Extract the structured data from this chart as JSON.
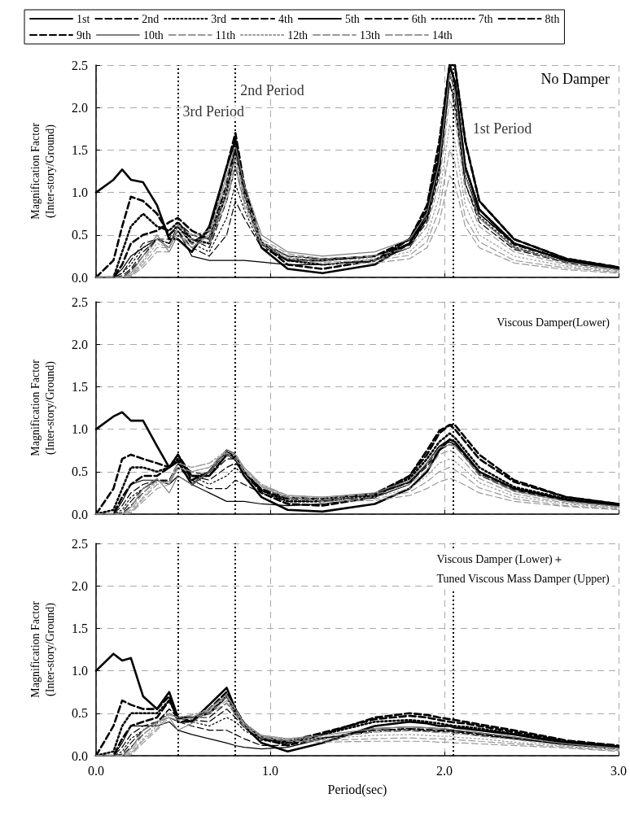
{
  "chart_data": [
    {
      "type": "line",
      "ylabel": "Magnification Factor\n(Inter-story/Ground)",
      "annotations": [
        "No Damper"
      ],
      "legend": "top",
      "grid": true,
      "tick_labels": "y",
      "xlim": [
        0,
        3
      ],
      "xticks": [
        0,
        1,
        2,
        3
      ],
      "ylim": [
        0,
        2.5
      ],
      "yticks": [
        {
          "value": 0,
          "label": "0.0"
        },
        {
          "value": 0.5,
          "label": "0.5"
        },
        {
          "value": 1,
          "label": "1.0"
        },
        {
          "value": 1.5,
          "label": "1.5"
        },
        {
          "value": 2,
          "label": "2.0"
        },
        {
          "value": 2.5,
          "label": "2.5"
        }
      ],
      "ref_lines": [
        {
          "axis": "x",
          "value": 0.47,
          "label": "3rd Period",
          "color": "#000000",
          "line_style": "dotted"
        },
        {
          "axis": "x",
          "value": 0.8,
          "label": "2nd Period",
          "color": "#000000",
          "line_style": "dotted"
        },
        {
          "axis": "x",
          "value": 2.05,
          "label": "1st Period",
          "color": "#000000",
          "line_style": "dotted"
        }
      ],
      "x": [
        0,
        0.1,
        0.15,
        0.2,
        0.27,
        0.35,
        0.42,
        0.47,
        0.55,
        0.65,
        0.75,
        0.8,
        0.85,
        0.95,
        1.1,
        1.3,
        1.6,
        1.8,
        1.9,
        1.97,
        2.03,
        2.06,
        2.12,
        2.2,
        2.4,
        2.7,
        3.0
      ],
      "series": [
        {
          "name": "1st",
          "color": "#000000",
          "line_style": "solid",
          "values": [
            1.0,
            1.15,
            1.27,
            1.15,
            1.12,
            0.85,
            0.45,
            0.45,
            0.3,
            0.6,
            1.3,
            1.62,
            1.0,
            0.35,
            0.1,
            0.05,
            0.15,
            0.4,
            0.75,
            1.4,
            2.5,
            2.3,
            1.3,
            0.8,
            0.4,
            0.2,
            0.1
          ]
        },
        {
          "name": "2nd",
          "color": "#000000",
          "line_style": "dashed",
          "values": [
            0,
            0.2,
            0.6,
            0.95,
            0.9,
            0.75,
            0.5,
            0.6,
            0.4,
            0.55,
            1.3,
            1.7,
            1.1,
            0.4,
            0.15,
            0.1,
            0.2,
            0.45,
            0.8,
            1.5,
            2.5,
            2.5,
            1.6,
            0.9,
            0.45,
            0.22,
            0.12
          ]
        },
        {
          "name": "3rd",
          "color": "#000000",
          "line_style": "dotted",
          "values": [
            0,
            0,
            0.3,
            0.6,
            0.75,
            0.6,
            0.55,
            0.65,
            0.45,
            0.4,
            1.0,
            1.5,
            1.0,
            0.4,
            0.2,
            0.15,
            0.2,
            0.4,
            0.75,
            1.4,
            2.5,
            2.3,
            1.3,
            0.8,
            0.4,
            0.2,
            0.1
          ]
        },
        {
          "name": "4th",
          "color": "#000000",
          "line_style": "dashed",
          "values": [
            0,
            0,
            0.15,
            0.4,
            0.5,
            0.55,
            0.65,
            0.7,
            0.55,
            0.45,
            1.1,
            1.55,
            1.0,
            0.4,
            0.2,
            0.2,
            0.25,
            0.45,
            0.85,
            1.6,
            2.5,
            2.5,
            1.6,
            0.9,
            0.45,
            0.22,
            0.12
          ]
        },
        {
          "name": "5th",
          "color": "#000000",
          "line_style": "solid",
          "values": [
            0,
            0,
            0.1,
            0.25,
            0.35,
            0.45,
            0.35,
            0.55,
            0.25,
            0.2,
            0.2,
            0.2,
            0.2,
            0.18,
            0.15,
            0.15,
            0.2,
            0.35,
            0.7,
            1.3,
            2.4,
            2.2,
            1.2,
            0.75,
            0.4,
            0.2,
            0.1
          ]
        },
        {
          "name": "6th",
          "color": "#000000",
          "line_style": "dashed",
          "values": [
            0,
            0,
            0.05,
            0.2,
            0.4,
            0.45,
            0.4,
            0.55,
            0.35,
            0.25,
            0.5,
            0.9,
            0.7,
            0.35,
            0.2,
            0.2,
            0.25,
            0.4,
            0.7,
            1.3,
            2.4,
            2.2,
            1.2,
            0.75,
            0.38,
            0.2,
            0.1
          ]
        },
        {
          "name": "7th",
          "color": "#000000",
          "line_style": "dotted",
          "values": [
            0,
            0,
            0.05,
            0.15,
            0.35,
            0.45,
            0.4,
            0.6,
            0.4,
            0.3,
            0.7,
            1.1,
            0.8,
            0.35,
            0.22,
            0.2,
            0.25,
            0.4,
            0.7,
            1.3,
            2.4,
            2.2,
            1.2,
            0.72,
            0.36,
            0.18,
            0.1
          ]
        },
        {
          "name": "8th",
          "color": "#000000",
          "line_style": "dashed",
          "values": [
            0,
            0,
            0.02,
            0.1,
            0.3,
            0.45,
            0.4,
            0.6,
            0.45,
            0.35,
            0.9,
            1.3,
            0.9,
            0.4,
            0.25,
            0.22,
            0.25,
            0.4,
            0.68,
            1.25,
            2.3,
            2.1,
            1.1,
            0.7,
            0.35,
            0.18,
            0.1
          ]
        },
        {
          "name": "9th",
          "color": "#000000",
          "line_style": "dashed",
          "values": [
            0,
            0,
            0,
            0.08,
            0.25,
            0.45,
            0.45,
            0.65,
            0.5,
            0.45,
            1.0,
            1.45,
            1.0,
            0.42,
            0.25,
            0.22,
            0.25,
            0.38,
            0.65,
            1.2,
            2.3,
            2.0,
            1.1,
            0.65,
            0.33,
            0.17,
            0.09
          ]
        },
        {
          "name": "10th",
          "color": "#808080",
          "line_style": "solid",
          "values": [
            0,
            0,
            0,
            0.05,
            0.25,
            0.5,
            0.3,
            0.5,
            0.35,
            0.5,
            1.2,
            1.55,
            1.1,
            0.5,
            0.3,
            0.25,
            0.3,
            0.45,
            0.75,
            1.35,
            2.4,
            2.2,
            1.2,
            0.7,
            0.35,
            0.18,
            0.09
          ]
        },
        {
          "name": "11th",
          "color": "#999999",
          "line_style": "dashed",
          "values": [
            0,
            0,
            0,
            0.03,
            0.2,
            0.45,
            0.35,
            0.6,
            0.5,
            0.55,
            1.1,
            1.45,
            1.0,
            0.45,
            0.28,
            0.22,
            0.25,
            0.35,
            0.6,
            1.1,
            2.1,
            1.9,
            1.0,
            0.6,
            0.3,
            0.15,
            0.08
          ]
        },
        {
          "name": "12th",
          "color": "#999999",
          "line_style": "dotted",
          "values": [
            0,
            0,
            0,
            0.02,
            0.18,
            0.4,
            0.35,
            0.6,
            0.5,
            0.5,
            1.0,
            1.4,
            0.95,
            0.42,
            0.26,
            0.2,
            0.22,
            0.3,
            0.5,
            0.95,
            1.8,
            1.6,
            0.85,
            0.5,
            0.25,
            0.13,
            0.07
          ]
        },
        {
          "name": "13th",
          "color": "#999999",
          "line_style": "dashed",
          "values": [
            0,
            0,
            0,
            0.02,
            0.15,
            0.35,
            0.35,
            0.55,
            0.45,
            0.45,
            0.95,
            1.35,
            0.9,
            0.4,
            0.24,
            0.18,
            0.2,
            0.26,
            0.42,
            0.8,
            1.5,
            1.35,
            0.7,
            0.42,
            0.2,
            0.11,
            0.06
          ]
        },
        {
          "name": "14th",
          "color": "#999999",
          "line_style": "dashed",
          "values": [
            0,
            0,
            0,
            0.01,
            0.12,
            0.3,
            0.3,
            0.5,
            0.4,
            0.4,
            0.9,
            1.3,
            0.85,
            0.38,
            0.22,
            0.16,
            0.17,
            0.22,
            0.35,
            0.65,
            1.2,
            1.1,
            0.6,
            0.35,
            0.17,
            0.09,
            0.05
          ]
        }
      ]
    },
    {
      "type": "line",
      "ylabel": "Magnification Factor\n(Inter-story/Ground)",
      "annotations": [
        "Viscous Damper(Lower)"
      ],
      "grid": true,
      "tick_labels": "y",
      "xlim": [
        0,
        3
      ],
      "xticks": [
        0,
        1,
        2,
        3
      ],
      "ylim": [
        0,
        2.5
      ],
      "yticks": [
        {
          "value": 0,
          "label": "0.0"
        },
        {
          "value": 0.5,
          "label": "0.5"
        },
        {
          "value": 1,
          "label": "1.0"
        },
        {
          "value": 1.5,
          "label": "1.5"
        },
        {
          "value": 2,
          "label": "2.0"
        },
        {
          "value": 2.5,
          "label": "2.5"
        }
      ],
      "ref_lines": [
        {
          "axis": "x",
          "value": 0.47,
          "color": "#000000",
          "line_style": "dotted"
        },
        {
          "axis": "x",
          "value": 0.8,
          "color": "#000000",
          "line_style": "dotted"
        },
        {
          "axis": "x",
          "value": 2.05,
          "color": "#000000",
          "line_style": "dotted"
        }
      ],
      "x": [
        0,
        0.1,
        0.15,
        0.2,
        0.27,
        0.35,
        0.42,
        0.47,
        0.55,
        0.65,
        0.75,
        0.8,
        0.85,
        0.95,
        1.1,
        1.3,
        1.6,
        1.8,
        1.9,
        1.97,
        2.03,
        2.06,
        2.12,
        2.2,
        2.4,
        2.7,
        3.0
      ],
      "series": [
        {
          "color": "#000000",
          "line_style": "solid",
          "values": [
            1.0,
            1.15,
            1.2,
            1.1,
            1.1,
            0.8,
            0.55,
            0.62,
            0.35,
            0.5,
            0.75,
            0.65,
            0.45,
            0.2,
            0.05,
            0.03,
            0.12,
            0.3,
            0.5,
            0.75,
            0.88,
            0.85,
            0.7,
            0.5,
            0.3,
            0.17,
            0.1
          ]
        },
        {
          "color": "#000000",
          "line_style": "dashed",
          "values": [
            0,
            0.3,
            0.65,
            0.7,
            0.65,
            0.6,
            0.55,
            0.7,
            0.4,
            0.5,
            0.75,
            0.7,
            0.5,
            0.25,
            0.12,
            0.1,
            0.2,
            0.45,
            0.75,
            0.98,
            1.05,
            1.05,
            0.9,
            0.7,
            0.4,
            0.2,
            0.12
          ]
        },
        {
          "color": "#000000",
          "line_style": "dotted",
          "values": [
            0,
            0.05,
            0.3,
            0.55,
            0.55,
            0.5,
            0.55,
            0.65,
            0.45,
            0.45,
            0.7,
            0.65,
            0.5,
            0.28,
            0.15,
            0.15,
            0.22,
            0.42,
            0.65,
            0.85,
            0.95,
            0.9,
            0.75,
            0.55,
            0.32,
            0.18,
            0.1
          ]
        },
        {
          "color": "#000000",
          "line_style": "dashed",
          "values": [
            0,
            0,
            0.2,
            0.35,
            0.45,
            0.45,
            0.55,
            0.7,
            0.45,
            0.45,
            0.7,
            0.65,
            0.5,
            0.28,
            0.18,
            0.18,
            0.24,
            0.45,
            0.7,
            0.95,
            1.05,
            1.0,
            0.85,
            0.65,
            0.38,
            0.2,
            0.12
          ]
        },
        {
          "color": "#000000",
          "line_style": "solid",
          "values": [
            0,
            0,
            0.15,
            0.35,
            0.4,
            0.4,
            0.35,
            0.45,
            0.35,
            0.25,
            0.15,
            0.15,
            0.15,
            0.12,
            0.1,
            0.12,
            0.2,
            0.35,
            0.6,
            0.8,
            0.85,
            0.82,
            0.7,
            0.5,
            0.3,
            0.17,
            0.1
          ]
        },
        {
          "color": "#000000",
          "line_style": "dashed",
          "values": [
            0,
            0,
            0.1,
            0.25,
            0.35,
            0.4,
            0.4,
            0.55,
            0.4,
            0.3,
            0.3,
            0.4,
            0.35,
            0.25,
            0.15,
            0.15,
            0.22,
            0.38,
            0.6,
            0.8,
            0.88,
            0.85,
            0.7,
            0.5,
            0.3,
            0.17,
            0.1
          ]
        },
        {
          "color": "#000000",
          "line_style": "dotted",
          "values": [
            0,
            0,
            0.05,
            0.2,
            0.3,
            0.4,
            0.35,
            0.55,
            0.45,
            0.35,
            0.45,
            0.55,
            0.45,
            0.27,
            0.18,
            0.17,
            0.23,
            0.38,
            0.6,
            0.8,
            0.88,
            0.85,
            0.7,
            0.5,
            0.3,
            0.17,
            0.1
          ]
        },
        {
          "color": "#000000",
          "line_style": "dashed",
          "values": [
            0,
            0,
            0.02,
            0.15,
            0.3,
            0.4,
            0.38,
            0.6,
            0.45,
            0.4,
            0.55,
            0.6,
            0.5,
            0.3,
            0.2,
            0.18,
            0.23,
            0.38,
            0.58,
            0.78,
            0.85,
            0.82,
            0.68,
            0.48,
            0.28,
            0.16,
            0.09
          ]
        },
        {
          "color": "#000000",
          "line_style": "dashed",
          "values": [
            0,
            0,
            0,
            0.1,
            0.25,
            0.4,
            0.4,
            0.6,
            0.5,
            0.45,
            0.65,
            0.65,
            0.5,
            0.3,
            0.2,
            0.18,
            0.23,
            0.37,
            0.56,
            0.75,
            0.82,
            0.8,
            0.66,
            0.46,
            0.27,
            0.15,
            0.09
          ]
        },
        {
          "color": "#808080",
          "line_style": "solid",
          "values": [
            0,
            0,
            0,
            0.08,
            0.3,
            0.42,
            0.25,
            0.45,
            0.35,
            0.5,
            0.75,
            0.7,
            0.55,
            0.33,
            0.22,
            0.2,
            0.25,
            0.4,
            0.6,
            0.78,
            0.82,
            0.8,
            0.66,
            0.47,
            0.27,
            0.15,
            0.09
          ]
        },
        {
          "color": "#999999",
          "line_style": "dashed",
          "values": [
            0,
            0,
            0,
            0.05,
            0.25,
            0.4,
            0.35,
            0.55,
            0.5,
            0.55,
            0.75,
            0.7,
            0.55,
            0.35,
            0.22,
            0.2,
            0.23,
            0.35,
            0.52,
            0.7,
            0.75,
            0.72,
            0.6,
            0.42,
            0.24,
            0.13,
            0.08
          ]
        },
        {
          "color": "#999999",
          "line_style": "dotted",
          "values": [
            0,
            0,
            0,
            0.03,
            0.2,
            0.38,
            0.38,
            0.6,
            0.55,
            0.6,
            0.75,
            0.7,
            0.55,
            0.35,
            0.22,
            0.19,
            0.2,
            0.3,
            0.45,
            0.6,
            0.65,
            0.62,
            0.52,
            0.37,
            0.21,
            0.12,
            0.07
          ]
        },
        {
          "color": "#999999",
          "line_style": "dashed",
          "values": [
            0,
            0,
            0,
            0.02,
            0.18,
            0.35,
            0.38,
            0.6,
            0.55,
            0.6,
            0.72,
            0.68,
            0.52,
            0.33,
            0.2,
            0.17,
            0.18,
            0.26,
            0.38,
            0.5,
            0.55,
            0.52,
            0.44,
            0.31,
            0.18,
            0.1,
            0.06
          ]
        },
        {
          "color": "#999999",
          "line_style": "dashed",
          "values": [
            0,
            0,
            0,
            0.01,
            0.15,
            0.3,
            0.35,
            0.55,
            0.5,
            0.55,
            0.7,
            0.65,
            0.5,
            0.32,
            0.19,
            0.15,
            0.16,
            0.22,
            0.3,
            0.38,
            0.42,
            0.4,
            0.34,
            0.25,
            0.15,
            0.09,
            0.05
          ]
        }
      ]
    },
    {
      "type": "line",
      "ylabel": "Magnification Factor\n(Inter-story/Ground)",
      "xlabel": "Period(sec)",
      "annotations": [
        "Viscous Damper (Lower)＋\nTuned Viscous Mass Damper (Upper)"
      ],
      "grid": true,
      "xlim": [
        0,
        3
      ],
      "xticks": [
        {
          "value": 0,
          "label": "0.0"
        },
        {
          "value": 1,
          "label": "1.0"
        },
        {
          "value": 2,
          "label": "2.0"
        },
        {
          "value": 3,
          "label": "3.0"
        }
      ],
      "ylim": [
        0,
        2.5
      ],
      "yticks": [
        {
          "value": 0,
          "label": "0.0"
        },
        {
          "value": 0.5,
          "label": "0.5"
        },
        {
          "value": 1,
          "label": "1.0"
        },
        {
          "value": 1.5,
          "label": "1.5"
        },
        {
          "value": 2,
          "label": "2.0"
        },
        {
          "value": 2.5,
          "label": "2.5"
        }
      ],
      "ref_lines": [
        {
          "axis": "x",
          "value": 0.47,
          "color": "#000000",
          "line_style": "dotted"
        },
        {
          "axis": "x",
          "value": 0.8,
          "color": "#000000",
          "line_style": "dotted"
        },
        {
          "axis": "x",
          "value": 2.05,
          "color": "#000000",
          "line_style": "dotted"
        }
      ],
      "x": [
        0,
        0.1,
        0.15,
        0.2,
        0.27,
        0.35,
        0.42,
        0.47,
        0.55,
        0.65,
        0.75,
        0.8,
        0.85,
        0.95,
        1.1,
        1.3,
        1.6,
        1.8,
        1.9,
        1.97,
        2.03,
        2.06,
        2.12,
        2.2,
        2.4,
        2.7,
        3.0
      ],
      "series": [
        {
          "color": "#000000",
          "line_style": "solid",
          "values": [
            1.0,
            1.2,
            1.12,
            1.15,
            0.7,
            0.55,
            0.75,
            0.45,
            0.4,
            0.6,
            0.8,
            0.55,
            0.35,
            0.15,
            0.05,
            0.15,
            0.35,
            0.4,
            0.38,
            0.35,
            0.35,
            0.33,
            0.32,
            0.3,
            0.25,
            0.15,
            0.1
          ]
        },
        {
          "color": "#000000",
          "line_style": "dashed",
          "values": [
            0,
            0.35,
            0.65,
            0.6,
            0.55,
            0.55,
            0.7,
            0.4,
            0.4,
            0.55,
            0.75,
            0.55,
            0.38,
            0.2,
            0.12,
            0.25,
            0.45,
            0.5,
            0.48,
            0.45,
            0.43,
            0.42,
            0.4,
            0.37,
            0.3,
            0.18,
            0.12
          ]
        },
        {
          "color": "#000000",
          "line_style": "dotted",
          "values": [
            0,
            0.05,
            0.35,
            0.5,
            0.5,
            0.5,
            0.65,
            0.45,
            0.45,
            0.5,
            0.7,
            0.5,
            0.35,
            0.2,
            0.15,
            0.25,
            0.4,
            0.42,
            0.4,
            0.38,
            0.36,
            0.35,
            0.34,
            0.32,
            0.26,
            0.16,
            0.1
          ]
        },
        {
          "color": "#000000",
          "line_style": "dashed",
          "values": [
            0,
            0,
            0.2,
            0.35,
            0.4,
            0.45,
            0.65,
            0.45,
            0.45,
            0.5,
            0.7,
            0.55,
            0.38,
            0.22,
            0.17,
            0.27,
            0.43,
            0.47,
            0.45,
            0.42,
            0.4,
            0.39,
            0.38,
            0.35,
            0.28,
            0.17,
            0.11
          ]
        },
        {
          "color": "#000000",
          "line_style": "solid",
          "values": [
            0,
            0,
            0.15,
            0.35,
            0.35,
            0.35,
            0.4,
            0.3,
            0.25,
            0.2,
            0.15,
            0.12,
            0.1,
            0.08,
            0.1,
            0.2,
            0.32,
            0.34,
            0.33,
            0.32,
            0.31,
            0.3,
            0.29,
            0.27,
            0.22,
            0.14,
            0.09
          ]
        },
        {
          "color": "#000000",
          "line_style": "dashed",
          "values": [
            0,
            0,
            0.1,
            0.25,
            0.35,
            0.4,
            0.45,
            0.4,
            0.35,
            0.3,
            0.3,
            0.25,
            0.2,
            0.12,
            0.12,
            0.2,
            0.3,
            0.32,
            0.31,
            0.3,
            0.3,
            0.29,
            0.28,
            0.26,
            0.21,
            0.13,
            0.09
          ]
        },
        {
          "color": "#000000",
          "line_style": "dotted",
          "values": [
            0,
            0,
            0.05,
            0.2,
            0.3,
            0.4,
            0.5,
            0.45,
            0.4,
            0.35,
            0.45,
            0.4,
            0.3,
            0.18,
            0.14,
            0.2,
            0.3,
            0.32,
            0.31,
            0.3,
            0.3,
            0.29,
            0.28,
            0.26,
            0.21,
            0.13,
            0.09
          ]
        },
        {
          "color": "#000000",
          "line_style": "dashed",
          "values": [
            0,
            0,
            0.02,
            0.15,
            0.3,
            0.4,
            0.55,
            0.45,
            0.42,
            0.4,
            0.55,
            0.45,
            0.33,
            0.2,
            0.16,
            0.21,
            0.3,
            0.31,
            0.3,
            0.29,
            0.29,
            0.28,
            0.27,
            0.25,
            0.2,
            0.13,
            0.09
          ]
        },
        {
          "color": "#000000",
          "line_style": "dashed",
          "values": [
            0,
            0,
            0,
            0.1,
            0.25,
            0.38,
            0.55,
            0.45,
            0.45,
            0.45,
            0.62,
            0.5,
            0.35,
            0.22,
            0.17,
            0.21,
            0.28,
            0.3,
            0.29,
            0.28,
            0.28,
            0.27,
            0.26,
            0.24,
            0.2,
            0.13,
            0.08
          ]
        },
        {
          "color": "#808080",
          "line_style": "solid",
          "values": [
            0,
            0,
            0,
            0.08,
            0.3,
            0.4,
            0.45,
            0.3,
            0.38,
            0.55,
            0.72,
            0.55,
            0.38,
            0.24,
            0.2,
            0.24,
            0.32,
            0.34,
            0.33,
            0.32,
            0.31,
            0.3,
            0.29,
            0.27,
            0.22,
            0.14,
            0.09
          ]
        },
        {
          "color": "#999999",
          "line_style": "dashed",
          "values": [
            0,
            0,
            0,
            0.05,
            0.25,
            0.38,
            0.5,
            0.42,
            0.45,
            0.55,
            0.7,
            0.55,
            0.38,
            0.24,
            0.2,
            0.22,
            0.28,
            0.29,
            0.28,
            0.27,
            0.27,
            0.26,
            0.25,
            0.23,
            0.19,
            0.12,
            0.08
          ]
        },
        {
          "color": "#999999",
          "line_style": "dotted",
          "values": [
            0,
            0,
            0,
            0.03,
            0.2,
            0.35,
            0.5,
            0.45,
            0.48,
            0.55,
            0.68,
            0.52,
            0.37,
            0.23,
            0.19,
            0.2,
            0.24,
            0.25,
            0.24,
            0.23,
            0.23,
            0.22,
            0.21,
            0.2,
            0.16,
            0.11,
            0.07
          ]
        },
        {
          "color": "#999999",
          "line_style": "dashed",
          "values": [
            0,
            0,
            0,
            0.02,
            0.18,
            0.32,
            0.48,
            0.45,
            0.48,
            0.52,
            0.65,
            0.5,
            0.36,
            0.22,
            0.18,
            0.18,
            0.2,
            0.21,
            0.2,
            0.2,
            0.19,
            0.19,
            0.18,
            0.17,
            0.14,
            0.1,
            0.06
          ]
        },
        {
          "color": "#999999",
          "line_style": "dashed",
          "values": [
            0,
            0,
            0,
            0.01,
            0.15,
            0.3,
            0.45,
            0.42,
            0.45,
            0.5,
            0.62,
            0.48,
            0.34,
            0.21,
            0.17,
            0.16,
            0.17,
            0.17,
            0.17,
            0.16,
            0.16,
            0.15,
            0.15,
            0.14,
            0.12,
            0.09,
            0.05
          ]
        }
      ]
    }
  ]
}
